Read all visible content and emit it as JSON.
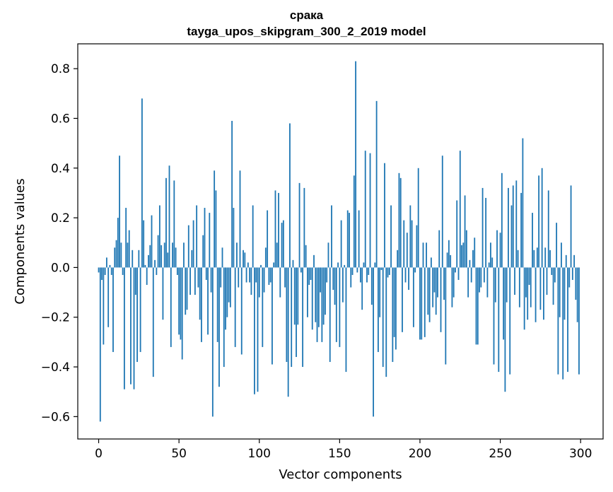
{
  "chart_data": {
    "type": "bar",
    "title": "срака",
    "subtitle": "tayga_upos_skipgram_300_2_2019 model",
    "xlabel": "Vector components",
    "ylabel": "Components values",
    "xlim": [
      -13,
      314
    ],
    "ylim": [
      -0.69,
      0.9
    ],
    "xticks": [
      0,
      50,
      100,
      150,
      200,
      250,
      300
    ],
    "yticks": [
      -0.6,
      -0.4,
      -0.2,
      0.0,
      0.2,
      0.4,
      0.6,
      0.8
    ],
    "ytick_labels": [
      "−0.6",
      "−0.4",
      "−0.2",
      "0.0",
      "0.2",
      "0.4",
      "0.6",
      "0.8"
    ],
    "bar_color": "#1f77b4",
    "grid": false,
    "values": [
      -0.02,
      -0.62,
      -0.05,
      -0.31,
      -0.03,
      0.04,
      -0.24,
      0.01,
      -0.03,
      -0.34,
      0.08,
      0.11,
      0.2,
      0.45,
      0.1,
      -0.03,
      -0.49,
      0.24,
      0.1,
      0.15,
      -0.47,
      0.07,
      -0.49,
      -0.11,
      -0.38,
      0.07,
      -0.34,
      0.68,
      0.19,
      0.01,
      -0.07,
      0.05,
      0.09,
      0.21,
      -0.44,
      0.03,
      -0.03,
      0.13,
      0.25,
      0.09,
      -0.21,
      0.1,
      0.36,
      0.06,
      0.41,
      -0.32,
      0.1,
      0.35,
      0.08,
      -0.03,
      -0.27,
      -0.29,
      -0.37,
      0.1,
      -0.19,
      -0.17,
      0.17,
      -0.11,
      0.07,
      0.19,
      -0.11,
      0.25,
      -0.08,
      -0.21,
      -0.3,
      0.13,
      0.24,
      -0.05,
      -0.27,
      0.22,
      -0.1,
      -0.6,
      0.39,
      0.31,
      -0.3,
      -0.48,
      -0.08,
      0.08,
      -0.4,
      -0.25,
      -0.2,
      -0.14,
      -0.16,
      0.59,
      0.24,
      -0.32,
      0.1,
      -0.08,
      0.39,
      -0.35,
      0.07,
      0.06,
      -0.06,
      0.02,
      -0.06,
      -0.11,
      0.25,
      -0.51,
      -0.06,
      -0.5,
      -0.12,
      0.01,
      -0.32,
      -0.1,
      0.08,
      0.23,
      -0.07,
      -0.06,
      -0.39,
      0.02,
      0.31,
      0.1,
      0.3,
      -0.12,
      0.18,
      0.19,
      -0.08,
      -0.38,
      -0.52,
      0.58,
      -0.4,
      0.03,
      -0.23,
      -0.36,
      -0.23,
      0.34,
      -0.02,
      -0.4,
      0.32,
      0.09,
      -0.2,
      -0.07,
      -0.05,
      -0.25,
      0.05,
      -0.22,
      -0.3,
      -0.24,
      -0.1,
      -0.3,
      -0.23,
      -0.19,
      -0.06,
      0.1,
      -0.38,
      0.25,
      -0.09,
      -0.15,
      -0.3,
      0.02,
      -0.32,
      0.19,
      -0.14,
      0.01,
      -0.42,
      0.23,
      0.22,
      -0.08,
      -0.03,
      0.37,
      0.83,
      -0.02,
      0.23,
      -0.06,
      -0.17,
      0.02,
      0.47,
      -0.06,
      -0.03,
      0.46,
      -0.15,
      -0.6,
      0.02,
      0.67,
      -0.34,
      -0.2,
      -0.01,
      -0.4,
      0.42,
      -0.44,
      -0.04,
      -0.03,
      0.25,
      -0.38,
      -0.28,
      -0.33,
      0.07,
      0.38,
      0.36,
      -0.26,
      0.19,
      -0.06,
      0.14,
      -0.09,
      0.25,
      0.19,
      -0.24,
      -0.02,
      0.17,
      0.4,
      -0.29,
      -0.29,
      0.1,
      -0.28,
      0.1,
      -0.19,
      -0.22,
      0.04,
      -0.16,
      -0.1,
      -0.19,
      -0.12,
      0.15,
      -0.26,
      0.45,
      -0.13,
      -0.39,
      0.06,
      0.11,
      0.05,
      -0.16,
      -0.12,
      -0.02,
      0.27,
      -0.05,
      0.47,
      0.09,
      0.1,
      0.29,
      0.15,
      -0.12,
      0.03,
      -0.06,
      0.07,
      0.12,
      -0.31,
      -0.31,
      -0.1,
      -0.08,
      0.32,
      -0.06,
      0.28,
      -0.12,
      0.02,
      0.1,
      0.04,
      -0.39,
      -0.14,
      0.15,
      -0.42,
      0.14,
      0.38,
      -0.29,
      -0.5,
      -0.14,
      0.32,
      -0.43,
      0.25,
      0.33,
      -0.11,
      0.35,
      0.07,
      -0.16,
      0.3,
      0.52,
      -0.25,
      -0.12,
      -0.21,
      -0.07,
      -0.16,
      0.22,
      0.07,
      -0.22,
      0.08,
      0.37,
      -0.17,
      0.4,
      -0.21,
      0.08,
      -0.11,
      0.31,
      0.07,
      -0.03,
      -0.15,
      -0.06,
      0.18,
      -0.43,
      -0.2,
      0.1,
      -0.45,
      -0.21,
      0.05,
      -0.42,
      -0.08,
      0.33,
      -0.05,
      0.05,
      -0.13,
      -0.22,
      -0.43
    ]
  }
}
